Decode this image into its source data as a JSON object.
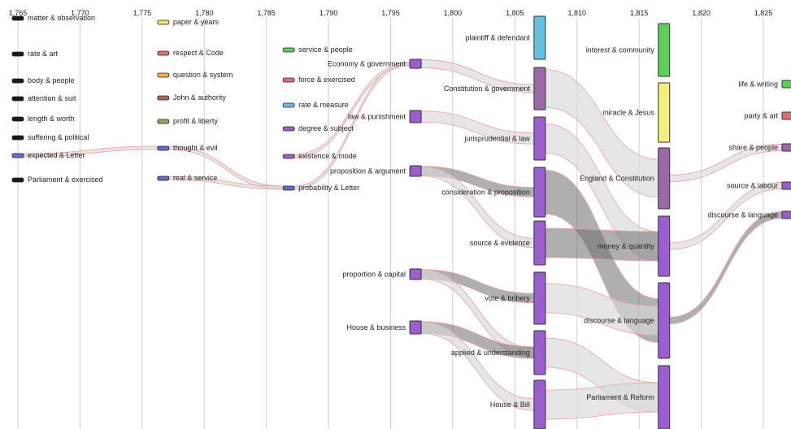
{
  "chart_data": {
    "type": "sankey",
    "x_axis": {
      "ticks": [
        "1,765",
        "1,770",
        "1,775",
        "1,780",
        "1,785",
        "1,790",
        "1,795",
        "1,800",
        "1,805",
        "1,810",
        "1,815",
        "1,820",
        "1,825"
      ],
      "tick_values": [
        1765,
        1770,
        1775,
        1780,
        1785,
        1790,
        1795,
        1800,
        1805,
        1810,
        1815,
        1820,
        1825
      ],
      "range": [
        1764.9,
        1827.3
      ],
      "grid": true
    },
    "colors": {
      "black": "#1a1a1a",
      "yellow": "#f0e46a",
      "red": "#e07070",
      "orange": "#f0b060",
      "brown": "#b06a5a",
      "olive": "#a0a060",
      "blue": "#6a6ad0",
      "cyan": "#62c0e0",
      "green": "#5ad05a",
      "pink": "#e06a9a",
      "purple": "#9a5ed0",
      "violet": "#9a6aa8",
      "lightyellow": "#f0f07a",
      "flow_dark": "#6e6e6e",
      "flow_light": "#d9d9d9",
      "flow_edge": "#e8a0a0"
    },
    "nodes": [
      {
        "id": "n1",
        "label": "matter & observation",
        "year": 1765,
        "thin": true,
        "color": "black",
        "label_side": "right",
        "value": 0
      },
      {
        "id": "n2",
        "label": "rate & art",
        "year": 1765,
        "thin": true,
        "color": "black",
        "label_side": "right",
        "value": 0
      },
      {
        "id": "n3",
        "label": "body & people",
        "year": 1765,
        "thin": true,
        "color": "black",
        "label_side": "right",
        "value": 0
      },
      {
        "id": "n4",
        "label": "attention & suit",
        "year": 1765,
        "thin": true,
        "color": "black",
        "label_side": "right",
        "value": 0
      },
      {
        "id": "n5",
        "label": "length & worth",
        "year": 1765,
        "thin": true,
        "color": "black",
        "label_side": "right",
        "value": 0
      },
      {
        "id": "n6",
        "label": "suffering & political",
        "year": 1765,
        "thin": true,
        "color": "black",
        "label_side": "right",
        "value": 0
      },
      {
        "id": "n7",
        "label": "expected & Letter",
        "year": 1765,
        "thin": true,
        "color": "blue",
        "label_side": "right",
        "value": 1
      },
      {
        "id": "n8",
        "label": "Parliament & exercised",
        "year": 1765,
        "thin": true,
        "color": "black",
        "label_side": "right",
        "value": 0
      },
      {
        "id": "n9",
        "label": "paper & years",
        "year": 1776.7,
        "thin": true,
        "color": "yellow",
        "label_side": "right",
        "value": 0
      },
      {
        "id": "n10",
        "label": "respect & Code",
        "year": 1776.7,
        "thin": true,
        "color": "red",
        "label_side": "right",
        "value": 0
      },
      {
        "id": "n11",
        "label": "question & system",
        "year": 1776.7,
        "thin": true,
        "color": "orange",
        "label_side": "right",
        "value": 0
      },
      {
        "id": "n12",
        "label": "John & authority",
        "year": 1776.7,
        "thin": true,
        "color": "brown",
        "label_side": "right",
        "value": 0
      },
      {
        "id": "n13",
        "label": "profit & liberty",
        "year": 1776.7,
        "thin": true,
        "color": "olive",
        "label_side": "right",
        "value": 0
      },
      {
        "id": "n14",
        "label": "thought & evil",
        "year": 1776.7,
        "thin": true,
        "color": "blue",
        "label_side": "right",
        "value": 1
      },
      {
        "id": "n15",
        "label": "real & service",
        "year": 1776.7,
        "thin": true,
        "color": "blue",
        "label_side": "right",
        "value": 1
      },
      {
        "id": "n16",
        "label": "service & people",
        "year": 1786.8,
        "thin": true,
        "color": "green",
        "label_side": "right",
        "value": 0
      },
      {
        "id": "n17",
        "label": "force & exercised",
        "year": 1786.8,
        "thin": true,
        "color": "pink",
        "label_side": "right",
        "value": 0
      },
      {
        "id": "n18",
        "label": "rate & measure",
        "year": 1786.8,
        "thin": true,
        "color": "cyan",
        "label_side": "right",
        "value": 0
      },
      {
        "id": "n19",
        "label": "degree & subject",
        "year": 1786.8,
        "thin": true,
        "color": "purple",
        "label_side": "right",
        "value": 0
      },
      {
        "id": "n20",
        "label": "existence & mode",
        "year": 1786.8,
        "thin": true,
        "color": "purple",
        "label_side": "right",
        "value": 0
      },
      {
        "id": "n21",
        "label": "probability & Letter",
        "year": 1786.8,
        "thin": true,
        "color": "blue",
        "label_side": "right",
        "value": 1
      },
      {
        "id": "n22",
        "label": "Economy & government",
        "year": 1797,
        "thin": false,
        "color": "purple",
        "label_side": "left",
        "value": 2
      },
      {
        "id": "n23",
        "label": "law & punishment",
        "year": 1797,
        "thin": false,
        "color": "purple",
        "label_side": "left",
        "value": 2
      },
      {
        "id": "n24",
        "label": "proposition & argument",
        "year": 1797,
        "thin": false,
        "color": "purple",
        "label_side": "left",
        "value": 2
      },
      {
        "id": "n25",
        "label": "proportion & capital",
        "year": 1797,
        "thin": false,
        "color": "purple",
        "label_side": "left",
        "value": 2
      },
      {
        "id": "n26",
        "label": "House & business",
        "year": 1797,
        "thin": false,
        "color": "purple",
        "label_side": "left",
        "value": 2
      },
      {
        "id": "n27",
        "label": "plaintiff & defendant",
        "year": 1807,
        "thin": false,
        "color": "cyan",
        "label_side": "left",
        "value": 6
      },
      {
        "id": "n28",
        "label": "Constitution & government",
        "year": 1807,
        "thin": false,
        "color": "violet",
        "label_side": "left",
        "value": 6
      },
      {
        "id": "n29",
        "label": "jurisprudential & law",
        "year": 1807,
        "thin": false,
        "color": "purple",
        "label_side": "left",
        "value": 6
      },
      {
        "id": "n30",
        "label": "consideration & proposition",
        "year": 1807,
        "thin": false,
        "color": "purple",
        "label_side": "left",
        "value": 6
      },
      {
        "id": "n31",
        "label": "source & evidence",
        "year": 1807,
        "thin": false,
        "color": "purple",
        "label_side": "left",
        "value": 6
      },
      {
        "id": "n32",
        "label": "vote & bribery",
        "year": 1807,
        "thin": false,
        "color": "purple",
        "label_side": "left",
        "value": 6
      },
      {
        "id": "n33",
        "label": "applied & understanding",
        "year": 1807,
        "thin": false,
        "color": "purple",
        "label_side": "left",
        "value": 6
      },
      {
        "id": "n34",
        "label": "House & Bill",
        "year": 1807,
        "thin": false,
        "color": "purple",
        "label_side": "left",
        "value": 6
      },
      {
        "id": "n35",
        "label": "interest & community",
        "year": 1817,
        "thin": false,
        "color": "green",
        "label_side": "left",
        "value": 6
      },
      {
        "id": "n36",
        "label": "miracle & Jesus",
        "year": 1817,
        "thin": false,
        "color": "lightyellow",
        "label_side": "left",
        "value": 6
      },
      {
        "id": "n37",
        "label": "England & Constitution",
        "year": 1817,
        "thin": false,
        "color": "violet",
        "label_side": "left",
        "value": 6
      },
      {
        "id": "n38",
        "label": "money & quantity",
        "year": 1817,
        "thin": false,
        "color": "purple",
        "label_side": "left",
        "value": 6
      },
      {
        "id": "n39",
        "label": "discourse & language",
        "year": 1817,
        "thin": false,
        "color": "purple",
        "label_side": "left",
        "value": 6
      },
      {
        "id": "n40",
        "label": "Parliament & Reform",
        "year": 1817,
        "thin": false,
        "color": "purple",
        "label_side": "left",
        "value": 6
      },
      {
        "id": "n41",
        "label": "life & writing",
        "year": 1827,
        "thin": false,
        "color": "green",
        "label_side": "left",
        "value": 1
      },
      {
        "id": "n42",
        "label": "party & art",
        "year": 1827,
        "thin": false,
        "color": "red",
        "label_side": "left",
        "value": 1
      },
      {
        "id": "n43",
        "label": "share & people",
        "year": 1827,
        "thin": false,
        "color": "violet",
        "label_side": "left",
        "value": 1
      },
      {
        "id": "n44",
        "label": "source & labour",
        "year": 1827,
        "thin": false,
        "color": "purple",
        "label_side": "left",
        "value": 1
      },
      {
        "id": "n45",
        "label": "discourse & language",
        "year": 1827,
        "thin": false,
        "color": "purple",
        "label_side": "left",
        "value": 1
      }
    ],
    "links": [
      {
        "source": "n7",
        "target": "n14",
        "value": 1,
        "shade": "light"
      },
      {
        "source": "n14",
        "target": "n21",
        "value": 1,
        "shade": "light"
      },
      {
        "source": "n15",
        "target": "n21",
        "value": 1,
        "shade": "light"
      },
      {
        "source": "n21",
        "target": "n22",
        "value": 1,
        "shade": "light"
      },
      {
        "source": "n20",
        "target": "n22",
        "value": 1,
        "shade": "light"
      },
      {
        "source": "n22",
        "target": "n28",
        "value": 1,
        "shade": "light"
      },
      {
        "source": "n23",
        "target": "n29",
        "value": 1,
        "shade": "light"
      },
      {
        "source": "n24",
        "target": "n30",
        "value": 1,
        "shade": "dark"
      },
      {
        "source": "n24",
        "target": "n31",
        "value": 1,
        "shade": "light"
      },
      {
        "source": "n25",
        "target": "n32",
        "value": 1,
        "shade": "dark"
      },
      {
        "source": "n25",
        "target": "n33",
        "value": 1,
        "shade": "light"
      },
      {
        "source": "n26",
        "target": "n33",
        "value": 1,
        "shade": "dark"
      },
      {
        "source": "n26",
        "target": "n34",
        "value": 1,
        "shade": "light"
      },
      {
        "source": "n28",
        "target": "n37",
        "value": 3,
        "shade": "light"
      },
      {
        "source": "n29",
        "target": "n38",
        "value": 2,
        "shade": "light"
      },
      {
        "source": "n30",
        "target": "n39",
        "value": 3,
        "shade": "dark"
      },
      {
        "source": "n31",
        "target": "n38",
        "value": 2,
        "shade": "dark"
      },
      {
        "source": "n32",
        "target": "n39",
        "value": 2,
        "shade": "light"
      },
      {
        "source": "n33",
        "target": "n40",
        "value": 2,
        "shade": "light"
      },
      {
        "source": "n34",
        "target": "n40",
        "value": 2,
        "shade": "light"
      },
      {
        "source": "n37",
        "target": "n43",
        "value": 1,
        "shade": "light"
      },
      {
        "source": "n38",
        "target": "n44",
        "value": 1,
        "shade": "light"
      },
      {
        "source": "n39",
        "target": "n45",
        "value": 1,
        "shade": "dark"
      }
    ]
  }
}
